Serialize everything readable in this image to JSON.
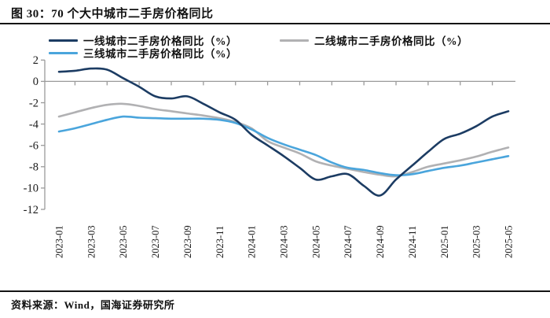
{
  "title": "图 30：70 个大中城市二手房价格同比",
  "footer": {
    "source_label": "资料来源：Wind，国海证券研究所"
  },
  "colors": {
    "tier1": "#1c3c63",
    "tier2": "#b1b1b3",
    "tier3": "#4aa5dc",
    "axis": "#9a9a9a",
    "text": "#1a1a1a",
    "rule": "#141414"
  },
  "chart_data": {
    "type": "line",
    "title": "70 个大中城市二手房价格同比",
    "x": [
      "2023-01",
      "2023-02",
      "2023-03",
      "2023-04",
      "2023-05",
      "2023-06",
      "2023-07",
      "2023-08",
      "2023-09",
      "2023-10",
      "2023-11",
      "2023-12",
      "2024-01",
      "2024-02",
      "2024-03",
      "2024-04",
      "2024-05",
      "2024-06",
      "2024-07",
      "2024-08",
      "2024-09",
      "2024-10",
      "2024-11",
      "2024-12",
      "2025-01",
      "2025-02",
      "2025-03",
      "2025-04",
      "2025-05"
    ],
    "x_tick_labels": [
      "2023-01",
      "2023-03",
      "2023-05",
      "2023-07",
      "2023-09",
      "2023-11",
      "2024-01",
      "2024-03",
      "2024-05",
      "2024-07",
      "2024-09",
      "2024-11",
      "2025-01",
      "2025-03",
      "2025-05"
    ],
    "y_ticks": [
      2,
      0,
      -2,
      -4,
      -6,
      -8,
      -10,
      -12
    ],
    "ylim": [
      -12,
      2
    ],
    "grid": "zero-line-only",
    "legend_position": "top-left",
    "series": [
      {
        "name": "一线城市二手房价格同比（%）",
        "color_key": "tier1",
        "values": [
          0.9,
          1.0,
          1.2,
          1.1,
          0.3,
          -0.5,
          -1.4,
          -1.6,
          -1.4,
          -2.1,
          -2.9,
          -3.6,
          -5.0,
          -6.0,
          -7.0,
          -8.1,
          -9.2,
          -8.9,
          -8.7,
          -9.8,
          -10.7,
          -9.2,
          -7.9,
          -6.6,
          -5.4,
          -4.9,
          -4.2,
          -3.3,
          -2.8
        ]
      },
      {
        "name": "二线城市二手房价格同比（%）",
        "color_key": "tier2",
        "values": [
          -3.3,
          -2.9,
          -2.5,
          -2.2,
          -2.1,
          -2.3,
          -2.6,
          -2.8,
          -3.0,
          -3.2,
          -3.45,
          -3.8,
          -4.4,
          -5.6,
          -6.2,
          -6.75,
          -7.5,
          -7.9,
          -8.2,
          -8.5,
          -8.75,
          -8.9,
          -8.5,
          -8.0,
          -7.7,
          -7.4,
          -7.05,
          -6.6,
          -6.2
        ]
      },
      {
        "name": "三线城市二手房价格同比（%）",
        "color_key": "tier3",
        "values": [
          -4.7,
          -4.4,
          -4.0,
          -3.6,
          -3.3,
          -3.4,
          -3.45,
          -3.5,
          -3.5,
          -3.5,
          -3.6,
          -3.9,
          -4.5,
          -5.3,
          -5.9,
          -6.4,
          -6.9,
          -7.6,
          -8.1,
          -8.3,
          -8.6,
          -8.8,
          -8.7,
          -8.4,
          -8.1,
          -7.9,
          -7.6,
          -7.3,
          -7.0
        ]
      }
    ]
  }
}
